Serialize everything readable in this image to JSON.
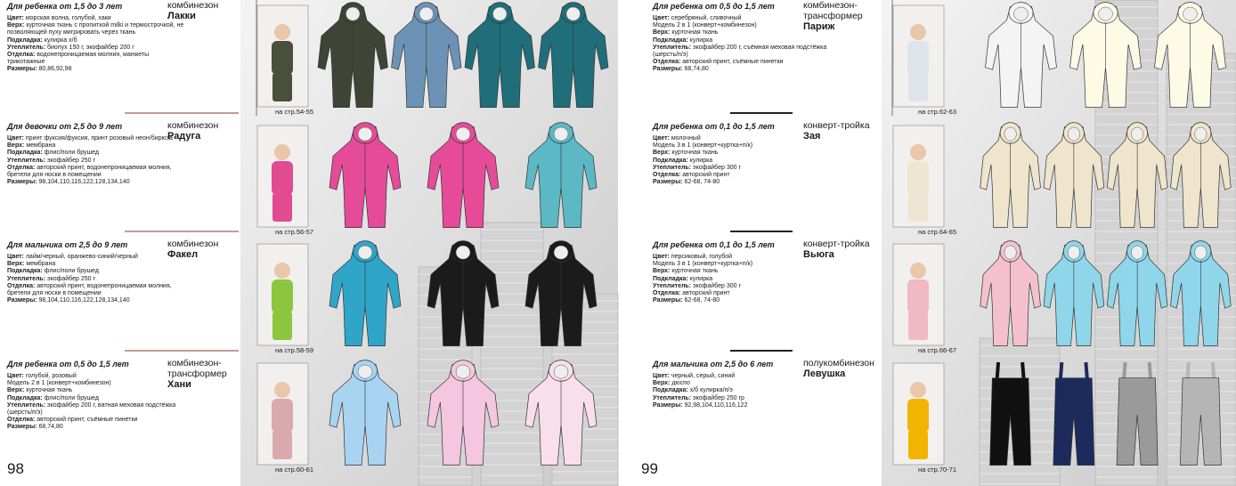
{
  "pages": [
    {
      "number": "98",
      "products": [
        {
          "heading": "Для ребенка от 1,5 до 3 лет",
          "type": "комбинезон",
          "name": "Лакки",
          "details": [
            {
              "label": "Цвет:",
              "text": "морская волна, голубой, хаки"
            },
            {
              "label": "Верх:",
              "text": "курточная ткань с пропиткой milki и термострочкой, не позволяющей пуху мигрировать через ткань"
            },
            {
              "label": "Подкладка:",
              "text": "кулирка х/б"
            },
            {
              "label": "Утеплитель:",
              "text": "биопух 150 г, экофайбер 200 г"
            },
            {
              "label": "Отделка:",
              "text": "водонепроницаемая молния, манжеты трикотажные"
            },
            {
              "label": "Размеры:",
              "text": "80,86,92,98"
            }
          ],
          "ref": "на стр.54-55"
        },
        {
          "heading": "Для девочки от 2,5 до 9 лет",
          "type": "комбинезон",
          "name": "Радуга",
          "details": [
            {
              "label": "Цвет:",
              "text": "принт фуксия/фуксия, принт розовый неон/бирюза"
            },
            {
              "label": "Верх:",
              "text": "мембрана"
            },
            {
              "label": "Подкладка:",
              "text": "флис/поли брушед"
            },
            {
              "label": "Утеплитель:",
              "text": "экофайбер 250 г"
            },
            {
              "label": "Отделка:",
              "text": "авторский принт, водонепроницаемая молния, бретели для носки в помещении"
            },
            {
              "label": "Размеры:",
              "text": "98,104,110,116,122,128,134,140"
            }
          ],
          "ref": "на стр.56-57"
        },
        {
          "heading": "Для мальчика от 2,5 до 9 лет",
          "type": "комбинезон",
          "name": "Факел",
          "details": [
            {
              "label": "Цвет:",
              "text": "лайм/черный, оранжево-синий/черный"
            },
            {
              "label": "Верх:",
              "text": "мембрана"
            },
            {
              "label": "Подкладка:",
              "text": "флис/поли брушед"
            },
            {
              "label": "Утеплитель:",
              "text": "экофайбер 250 г"
            },
            {
              "label": "Отделка:",
              "text": "авторский принт, водонепроницаемая молния, бретели для носки в помещении"
            },
            {
              "label": "Размеры:",
              "text": "98,104,110,116,122,128,134,140"
            }
          ],
          "ref": "на стр.58-59"
        },
        {
          "heading": "Для ребенка от 0,5 до 1,5 лет",
          "type": "комбинезон-трансформер",
          "name": "Хани",
          "details": [
            {
              "label": "Цвет:",
              "text": "голубой, розовый"
            },
            {
              "text": "Модель 2 в 1 (конверт+комбинезон)"
            },
            {
              "label": "Верх:",
              "text": "курточная ткань"
            },
            {
              "label": "Подкладка:",
              "text": "флис/поли брушед"
            },
            {
              "label": "Утеплитель:",
              "text": "экофайбер 200 г, ватная меховая подстёжка (шерсть/п/э)"
            },
            {
              "label": "Отделка:",
              "text": "авторский принт, съёмные пинетки"
            },
            {
              "label": "Размеры:",
              "text": "68,74,80"
            }
          ],
          "ref": "на стр.60-61"
        }
      ]
    },
    {
      "number": "99",
      "products": [
        {
          "heading": "Для ребенка от 0,5 до 1,5 лет",
          "type": "комбинезон-трансформер",
          "name": "Париж",
          "details": [
            {
              "label": "Цвет:",
              "text": "серебряный, сливочный"
            },
            {
              "text": "Модель 2 в 1 (конверт+комбинезон)"
            },
            {
              "label": "Верх:",
              "text": "курточная ткань"
            },
            {
              "label": "Подкладка:",
              "text": "кулирка"
            },
            {
              "label": "Утеплитель:",
              "text": "экофайбер 200 г, съёмная меховая подстёжка (шерсть/п/э)"
            },
            {
              "label": "Отделка:",
              "text": "авторский принт, съёмные пинетки"
            },
            {
              "label": "Размеры:",
              "text": "68,74,80"
            }
          ],
          "ref": "на стр.62-63"
        },
        {
          "heading": "Для ребенка от 0,1 до 1,5 лет",
          "type": "конверт-тройка",
          "name": "Зая",
          "details": [
            {
              "label": "Цвет:",
              "text": "молочный"
            },
            {
              "text": "Модель 3 в 1 (конверт+куртка+п/к)"
            },
            {
              "label": "Верх:",
              "text": "курточная ткань"
            },
            {
              "label": "Подкладка:",
              "text": "кулирка"
            },
            {
              "label": "Утеплитель:",
              "text": "экофайбер 300 г"
            },
            {
              "label": "Отделка:",
              "text": "авторский принт"
            },
            {
              "label": "Размеры:",
              "text": "62-68, 74-80"
            }
          ],
          "ref": "на стр.64-65"
        },
        {
          "heading": "Для ребенка от 0,1 до 1,5 лет",
          "type": "конверт-тройка",
          "name": "Вьюга",
          "details": [
            {
              "label": "Цвет:",
              "text": "персиковый, голубой"
            },
            {
              "text": "Модель 3 в 1 (конверт+куртка+п/к)"
            },
            {
              "label": "Верх:",
              "text": "курточная ткань"
            },
            {
              "label": "Подкладка:",
              "text": "кулирка"
            },
            {
              "label": "Утеплитель:",
              "text": "экофайбер 300 г"
            },
            {
              "label": "Отделка:",
              "text": "авторский принт"
            },
            {
              "label": "Размеры:",
              "text": "62-68, 74-80"
            }
          ],
          "ref": "на стр.66-67"
        },
        {
          "heading": "Для мальчика от 2,5 до 6 лет",
          "type": "полукомбинезон",
          "name": "Левушка",
          "details": [
            {
              "label": "Цвет:",
              "text": "черный, серый, синий"
            },
            {
              "label": "Верх:",
              "text": "дюспо"
            },
            {
              "label": "Подкладка:",
              "text": "х/б кулирка/п/э"
            },
            {
              "label": "Утеплитель:",
              "text": "экофайбер 250 гр"
            },
            {
              "label": "Размеры:",
              "text": "92,98,104,110,116,122"
            }
          ],
          "ref": "на стр.70-71"
        }
      ]
    }
  ]
}
